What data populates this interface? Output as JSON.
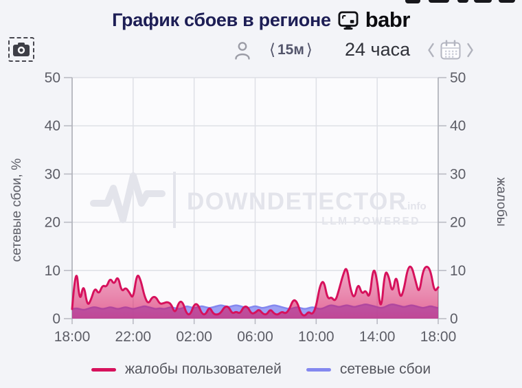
{
  "header": {
    "title": "График сбоев в регионе",
    "brand": "babr"
  },
  "controls": {
    "interval_prev": "⟨",
    "interval_label": "15м",
    "interval_next": "⟩",
    "range_label": "24 часа"
  },
  "chart_data": {
    "type": "area",
    "title": "График сбоев в регионе",
    "x_start": "18:00",
    "x_step_minutes": 15,
    "x_tick_labels": [
      "18:00",
      "22:00",
      "02:00",
      "06:00",
      "10:00",
      "14:00",
      "18:00"
    ],
    "y_ticks": [
      0,
      10,
      20,
      30,
      40,
      50
    ],
    "ylim": [
      0,
      50
    ],
    "y_left_label": "сетевые сбои, %",
    "y_right_label": "жалобы",
    "grid": true,
    "legend_position": "bottom",
    "watermark": {
      "brand": "DOWNDETECTOR",
      "suffix": ".info",
      "tagline": "LLM POWERED"
    },
    "series": [
      {
        "name": "жалобы пользователей",
        "color": "#d6115c",
        "fill_opacity_top": 0.33,
        "fill_opacity_bottom": 0.62,
        "values": [
          2,
          12,
          3,
          7.5,
          2.5,
          4,
          6.5,
          5,
          7,
          6.5,
          8.5,
          7,
          9,
          5.5,
          6.5,
          5.5,
          4,
          9.5,
          8,
          4.5,
          3,
          4.5,
          4.5,
          3,
          3.2,
          3.5,
          3,
          1,
          3.5,
          3.5,
          1,
          0.8,
          3,
          3,
          1,
          0.8,
          2.5,
          1,
          0.8,
          1.2,
          2.5,
          2.5,
          1,
          1.5,
          1,
          2.5,
          2.5,
          1,
          1.2,
          2,
          1,
          0.8,
          2,
          1,
          0.8,
          1.5,
          1,
          2,
          4,
          3.5,
          1,
          0.5,
          1.5,
          0.8,
          2.5,
          7,
          8,
          4,
          4.5,
          3.5,
          6,
          9,
          11,
          6,
          4,
          7.5,
          5,
          6,
          4,
          11,
          8,
          1,
          10,
          9,
          5,
          9.5,
          4,
          6,
          10.5,
          11,
          8,
          5,
          10,
          11,
          10,
          5.5,
          6.5
        ]
      },
      {
        "name": "сетевые сбои",
        "color": "#8488ef",
        "fill": "rgba(139,143,242,0.85)",
        "values": [
          2,
          2.2,
          2,
          1.8,
          2,
          2.3,
          2.4,
          2.2,
          2,
          2.2,
          2.4,
          2.2,
          2,
          2.2,
          2.4,
          2.2,
          2,
          2.2,
          2.4,
          2.6,
          2.4,
          2.2,
          2,
          2.2,
          2,
          2.2,
          2.4,
          2.2,
          2,
          2.2,
          2.6,
          2.4,
          2.2,
          2.4,
          2.6,
          2.4,
          2.2,
          2.4,
          2.6,
          2.8,
          2.6,
          2.4,
          2.6,
          2.8,
          2.6,
          2.4,
          2.2,
          2.4,
          2.6,
          2.4,
          2.2,
          2.4,
          2.6,
          2.8,
          2.6,
          2.4,
          2.2,
          2,
          2.2,
          2.4,
          2.2,
          2,
          2.2,
          2.4,
          2.2,
          2,
          2.2,
          2.6,
          2.8,
          2.6,
          2.4,
          2.6,
          2.8,
          2.6,
          2.4,
          2.6,
          2.8,
          3,
          2.8,
          2.6,
          2.4,
          2.2,
          2.4,
          2.8,
          3,
          2.8,
          2.6,
          2.4,
          2.6,
          2.8,
          2.6,
          2.4,
          2.2,
          2.4,
          2.6,
          2.4,
          2.2
        ]
      }
    ]
  }
}
